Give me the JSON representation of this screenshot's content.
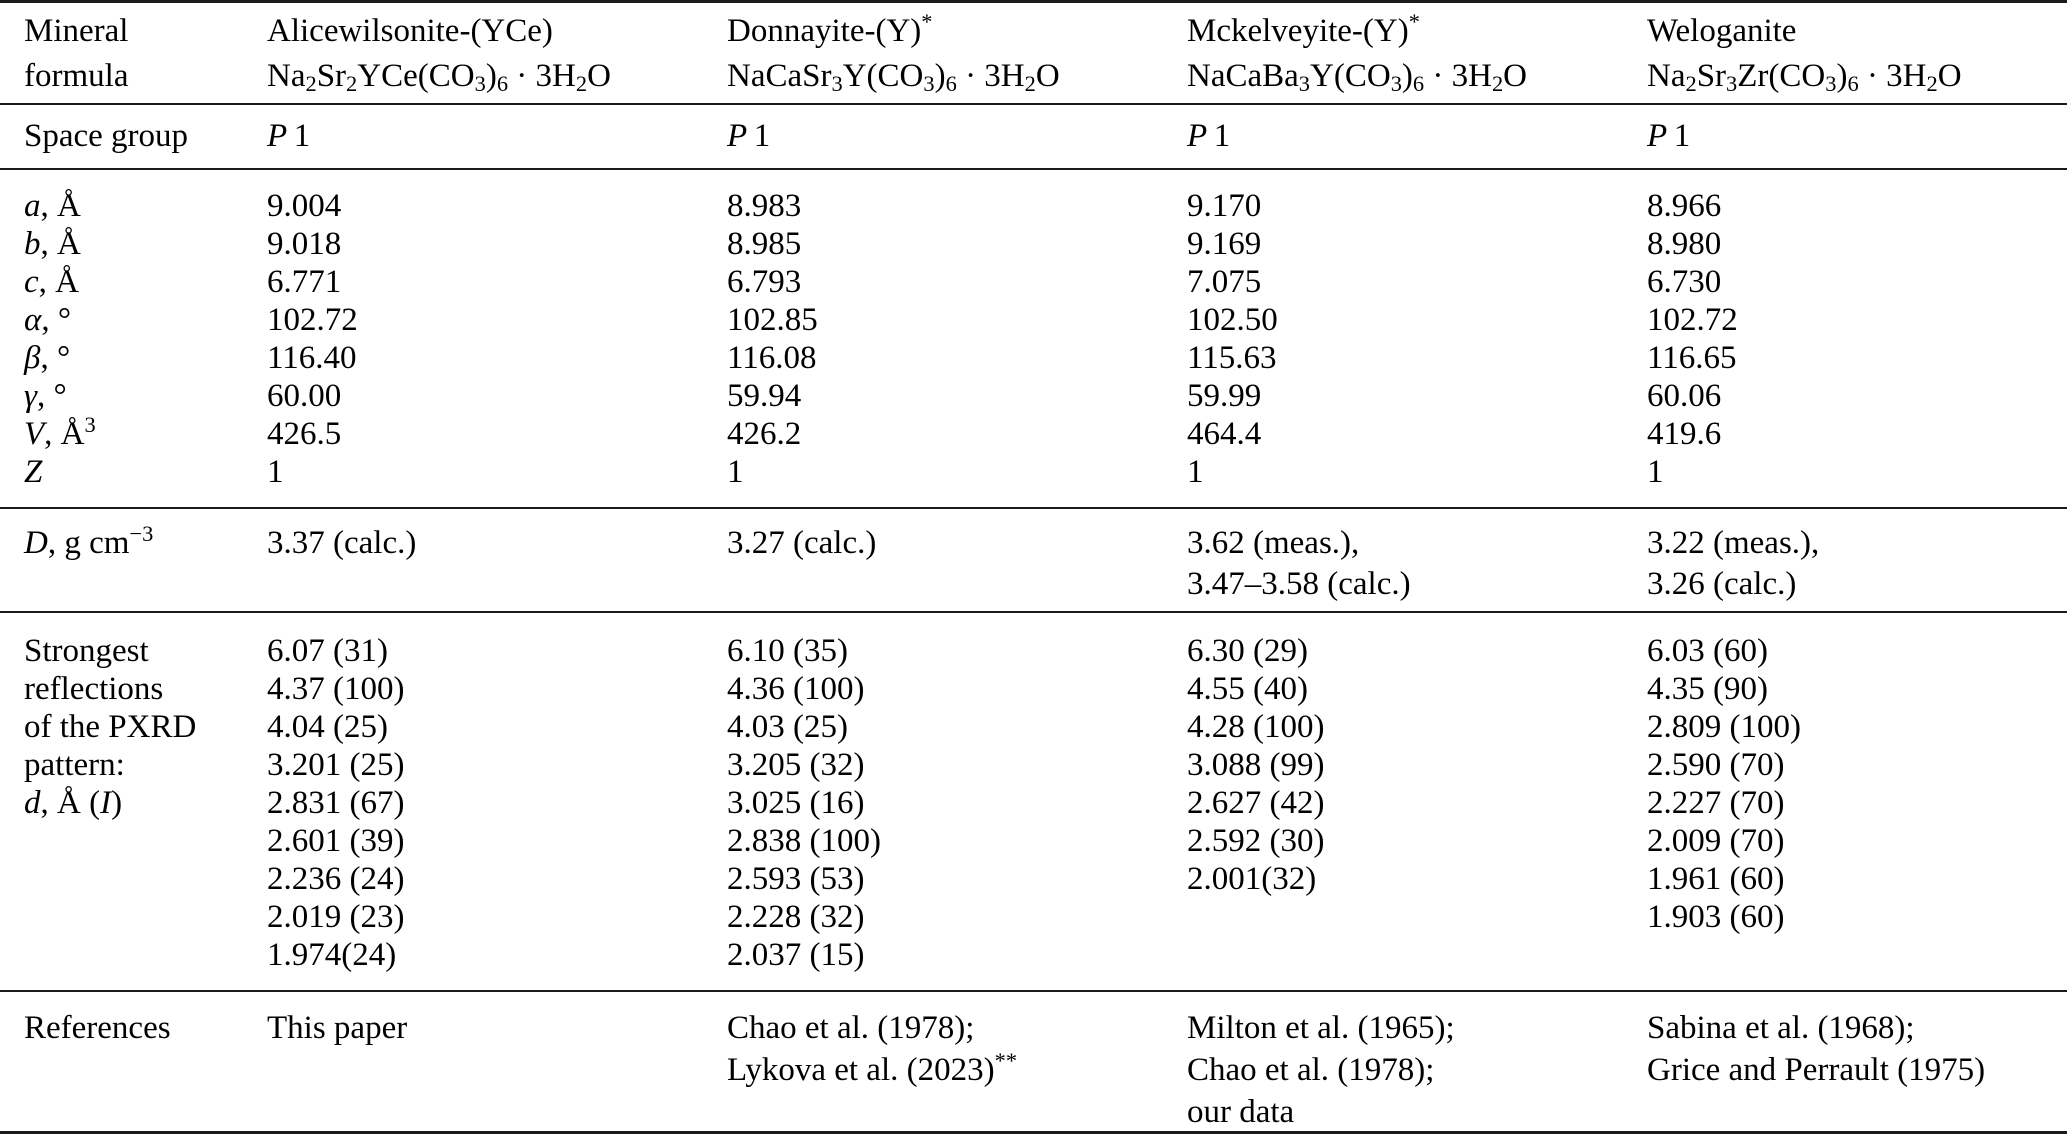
{
  "page": {
    "background": "#ffffff",
    "text_color": "#000000",
    "rule_color": "#1b1b1b"
  },
  "table": {
    "labels": {
      "mineral_formula": [
        "Mineral",
        "formula"
      ],
      "space_group": "Space group",
      "cell_params": [
        "*{a}, Å",
        "*{b}, Å",
        "*{c}, Å",
        "*{α}, °",
        "*{β}, °",
        "*{γ}, °",
        "*{V}, Å^{3}",
        "*{Z}"
      ],
      "density": "*{D}, g cm^{−3}",
      "reflections": [
        "Strongest",
        "reflections",
        "of the PXRD",
        "pattern:",
        "*{d}, Å (*{I})"
      ],
      "references": "References"
    },
    "minerals": [
      {
        "name": "Alicewilsonite-(YCe)",
        "formula": "Na_{2}Sr_{2}YCe(CO_{3})_{6} · 3H_{2}O",
        "space_group": "*{P} 1",
        "cell_values": [
          "9.004",
          "9.018",
          "6.771",
          "102.72",
          "116.40",
          "60.00",
          "426.5",
          "1"
        ],
        "density": [
          "3.37 (calc.)"
        ],
        "reflections": [
          "6.07 (31)",
          "4.37 (100)",
          "4.04 (25)",
          "3.201 (25)",
          "2.831 (67)",
          "2.601 (39)",
          "2.236 (24)",
          "2.019 (23)",
          "1.974(24)"
        ],
        "references": [
          "This paper"
        ]
      },
      {
        "name": "Donnayite-(Y)^{*}",
        "formula": "NaCaSr_{3}Y(CO_{3})_{6} · 3H_{2}O",
        "space_group": "*{P} 1",
        "cell_values": [
          "8.983",
          "8.985",
          "6.793",
          "102.85",
          "116.08",
          "59.94",
          "426.2",
          "1"
        ],
        "density": [
          "3.27 (calc.)"
        ],
        "reflections": [
          "6.10 (35)",
          "4.36 (100)",
          "4.03 (25)",
          "3.205 (32)",
          "3.025 (16)",
          "2.838 (100)",
          "2.593 (53)",
          "2.228 (32)",
          "2.037 (15)"
        ],
        "references": [
          "Chao et al. (1978);",
          "Lykova et al. (2023)^{**}"
        ]
      },
      {
        "name": "Mckelveyite-(Y)^{*}",
        "formula": "NaCaBa_{3}Y(CO_{3})_{6} · 3H_{2}O",
        "space_group": "*{P} 1",
        "cell_values": [
          "9.170",
          "9.169",
          "7.075",
          "102.50",
          "115.63",
          "59.99",
          "464.4",
          "1"
        ],
        "density": [
          "3.62 (meas.),",
          "3.47–3.58 (calc.)"
        ],
        "reflections": [
          "6.30 (29)",
          "4.55 (40)",
          "4.28 (100)",
          "3.088 (99)",
          "2.627 (42)",
          "2.592 (30)",
          "2.001(32)"
        ],
        "references": [
          "Milton et al. (1965);",
          "Chao et al. (1978);",
          "our data"
        ]
      },
      {
        "name": "Weloganite",
        "formula": "Na_{2}Sr_{3}Zr(CO_{3})_{6} · 3H_{2}O",
        "space_group": "*{P} 1",
        "cell_values": [
          "8.966",
          "8.980",
          "6.730",
          "102.72",
          "116.65",
          "60.06",
          "419.6",
          "1"
        ],
        "density": [
          "3.22 (meas.),",
          "3.26 (calc.)"
        ],
        "reflections": [
          "6.03 (60)",
          "4.35 (90)",
          "2.809 (100)",
          "2.590 (70)",
          "2.227 (70)",
          "2.009 (70)",
          "1.961 (60)",
          "1.903 (60)"
        ],
        "references": [
          "Sabina et al. (1968);",
          "Grice and Perrault (1975)"
        ]
      }
    ]
  }
}
